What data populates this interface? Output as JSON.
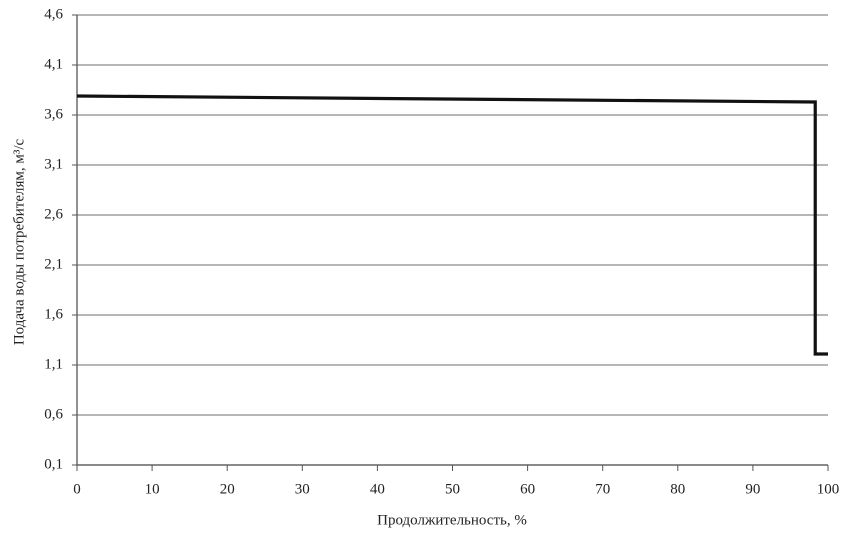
{
  "chart_data": {
    "type": "line",
    "xlabel": "Продолжительность, %",
    "ylabel": "Подача воды потребителям, м³/с",
    "x": [
      0,
      98.3,
      98.3,
      100
    ],
    "series": [
      {
        "color": "#111111",
        "values": [
          3.79,
          3.73,
          1.21,
          1.21
        ]
      }
    ],
    "xlim": [
      0,
      100
    ],
    "xticks": [
      0,
      10,
      20,
      30,
      40,
      50,
      60,
      70,
      80,
      90,
      100
    ],
    "ylim": [
      0.1,
      4.6
    ],
    "yticks": [
      {
        "value": 0.1,
        "label": "0,1"
      },
      {
        "value": 0.6,
        "label": "0,6"
      },
      {
        "value": 1.1,
        "label": "1,1"
      },
      {
        "value": 1.6,
        "label": "1,6"
      },
      {
        "value": 2.1,
        "label": "2,1"
      },
      {
        "value": 2.6,
        "label": "2,6"
      },
      {
        "value": 3.1,
        "label": "3,1"
      },
      {
        "value": 3.6,
        "label": "3,6"
      },
      {
        "value": 4.1,
        "label": "4,1"
      },
      {
        "value": 4.6,
        "label": "4,6"
      }
    ],
    "grid": true
  }
}
